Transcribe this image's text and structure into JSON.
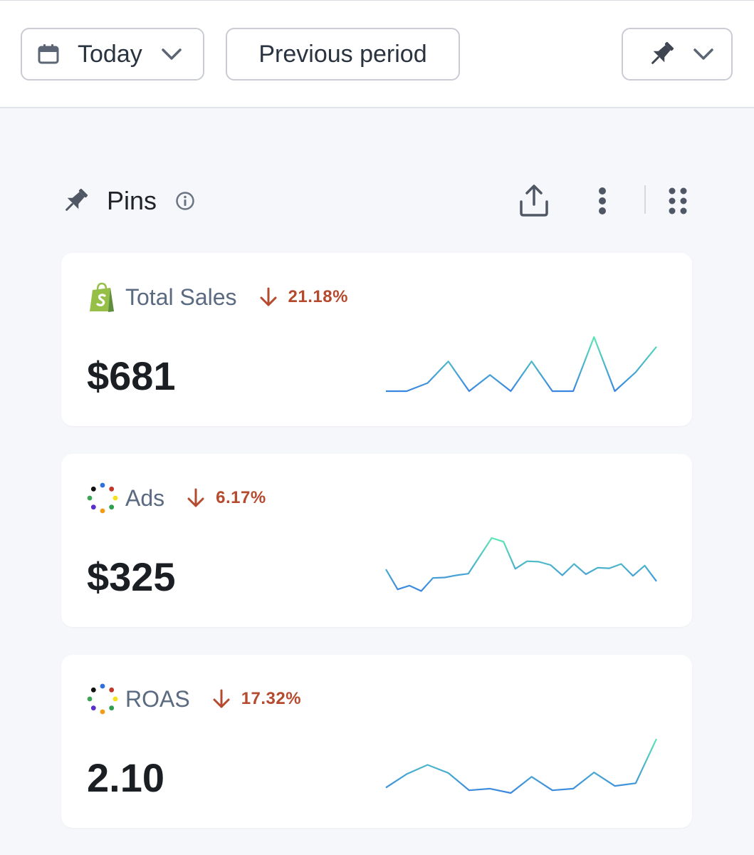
{
  "toolbar": {
    "date_range_label": "Today",
    "comparison_label": "Previous period"
  },
  "section": {
    "title": "Pins"
  },
  "colors": {
    "delta_negative": "#b54a2e",
    "spark_start": "#3b86e0",
    "spark_end": "#5ee6b6"
  },
  "cards": [
    {
      "title": "Total Sales",
      "source_icon": "shopify-icon",
      "delta": "21.18%",
      "delta_direction": "down",
      "value": "$681",
      "sparkline": [
        0,
        0,
        0.15,
        0.55,
        0,
        0.3,
        0,
        0.55,
        0,
        0,
        1.0,
        0,
        0.35,
        0.82
      ]
    },
    {
      "title": "Ads",
      "source_icon": "ads-dots-icon",
      "delta": "6.17%",
      "delta_direction": "down",
      "value": "$325",
      "sparkline": [
        0.42,
        0.05,
        0.12,
        0.02,
        0.26,
        0.27,
        0.31,
        0.34,
        0.67,
        1.0,
        0.93,
        0.43,
        0.57,
        0.56,
        0.5,
        0.31,
        0.52,
        0.33,
        0.45,
        0.44,
        0.52,
        0.3,
        0.49,
        0.2
      ]
    },
    {
      "title": "ROAS",
      "source_icon": "ads-dots-icon",
      "delta": "17.32%",
      "delta_direction": "down",
      "value": "2.10",
      "sparkline": [
        0.1,
        0.35,
        0.52,
        0.37,
        0.05,
        0.08,
        0.0,
        0.3,
        0.05,
        0.08,
        0.38,
        0.13,
        0.18,
        1.0
      ]
    }
  ]
}
